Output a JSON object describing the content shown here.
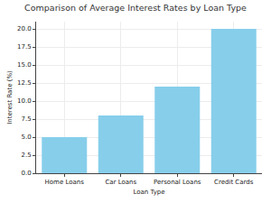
{
  "chart_data": {
    "type": "bar",
    "title": "Comparison of Average Interest Rates by Loan Type",
    "x_label": "Loan Type",
    "y_label": "Interest Rate (%)",
    "categories": [
      "Home Loans",
      "Car Loans",
      "Personal Loans",
      "Credit Cards"
    ],
    "values": [
      5,
      8,
      12,
      20
    ],
    "color": "#87ceeb",
    "ylim": [
      0,
      21
    ],
    "yticks": [
      {
        "value": 0,
        "label": "0.0"
      },
      {
        "value": 2.5,
        "label": "2.5"
      },
      {
        "value": 5,
        "label": "5.0"
      },
      {
        "value": 7.5,
        "label": "7.5"
      },
      {
        "value": 10,
        "label": "10.0"
      },
      {
        "value": 12.5,
        "label": "12.5"
      },
      {
        "value": 15,
        "label": "15.0"
      },
      {
        "value": 17.5,
        "label": "17.5"
      },
      {
        "value": 20,
        "label": "20.0"
      }
    ],
    "grid": true
  }
}
